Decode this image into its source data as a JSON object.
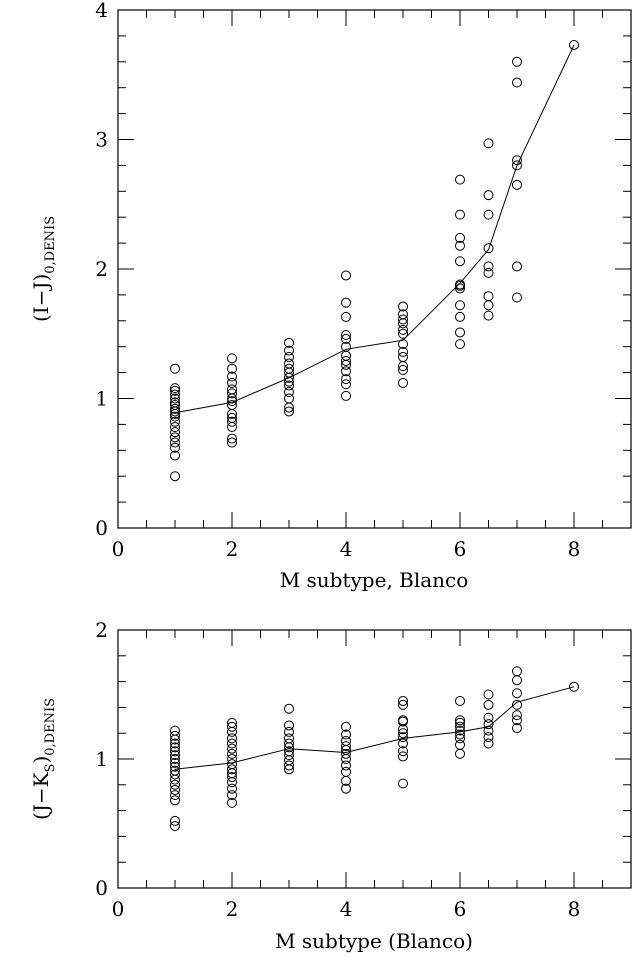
{
  "chart_data": [
    {
      "type": "scatter",
      "ylabel": "(I−J)",
      "ylabel_sub": "0,DENIS",
      "xlabel": "M subtype, Blanco",
      "xlim": [
        0,
        9
      ],
      "ylim": [
        0,
        4
      ],
      "x_ticks": [
        "0",
        "2",
        "4",
        "6",
        "8"
      ],
      "y_ticks": [
        "0",
        "1",
        "2",
        "3",
        "4"
      ],
      "grid": false,
      "points": [
        {
          "x": 1,
          "y": 0.4
        },
        {
          "x": 1,
          "y": 0.56
        },
        {
          "x": 1,
          "y": 0.62
        },
        {
          "x": 1,
          "y": 0.66
        },
        {
          "x": 1,
          "y": 0.7
        },
        {
          "x": 1,
          "y": 0.74
        },
        {
          "x": 1,
          "y": 0.78
        },
        {
          "x": 1,
          "y": 0.82
        },
        {
          "x": 1,
          "y": 0.86
        },
        {
          "x": 1,
          "y": 0.88
        },
        {
          "x": 1,
          "y": 0.9
        },
        {
          "x": 1,
          "y": 0.92
        },
        {
          "x": 1,
          "y": 0.95
        },
        {
          "x": 1,
          "y": 0.97
        },
        {
          "x": 1,
          "y": 1.0
        },
        {
          "x": 1,
          "y": 1.03
        },
        {
          "x": 1,
          "y": 1.06
        },
        {
          "x": 1,
          "y": 1.08
        },
        {
          "x": 1,
          "y": 1.23
        },
        {
          "x": 2,
          "y": 0.66
        },
        {
          "x": 2,
          "y": 0.69
        },
        {
          "x": 2,
          "y": 0.78
        },
        {
          "x": 2,
          "y": 0.82
        },
        {
          "x": 2,
          "y": 0.85
        },
        {
          "x": 2,
          "y": 0.88
        },
        {
          "x": 2,
          "y": 0.95
        },
        {
          "x": 2,
          "y": 0.98
        },
        {
          "x": 2,
          "y": 1.0
        },
        {
          "x": 2,
          "y": 1.04
        },
        {
          "x": 2,
          "y": 1.07
        },
        {
          "x": 2,
          "y": 1.12
        },
        {
          "x": 2,
          "y": 1.17
        },
        {
          "x": 2,
          "y": 1.23
        },
        {
          "x": 2,
          "y": 1.31
        },
        {
          "x": 3,
          "y": 0.9
        },
        {
          "x": 3,
          "y": 0.93
        },
        {
          "x": 3,
          "y": 1.0
        },
        {
          "x": 3,
          "y": 1.05
        },
        {
          "x": 3,
          "y": 1.1
        },
        {
          "x": 3,
          "y": 1.13
        },
        {
          "x": 3,
          "y": 1.16
        },
        {
          "x": 3,
          "y": 1.2
        },
        {
          "x": 3,
          "y": 1.23
        },
        {
          "x": 3,
          "y": 1.27
        },
        {
          "x": 3,
          "y": 1.32
        },
        {
          "x": 3,
          "y": 1.37
        },
        {
          "x": 3,
          "y": 1.43
        },
        {
          "x": 4,
          "y": 1.02
        },
        {
          "x": 4,
          "y": 1.11
        },
        {
          "x": 4,
          "y": 1.15
        },
        {
          "x": 4,
          "y": 1.21
        },
        {
          "x": 4,
          "y": 1.26
        },
        {
          "x": 4,
          "y": 1.29
        },
        {
          "x": 4,
          "y": 1.33
        },
        {
          "x": 4,
          "y": 1.4
        },
        {
          "x": 4,
          "y": 1.46
        },
        {
          "x": 4,
          "y": 1.49
        },
        {
          "x": 4,
          "y": 1.63
        },
        {
          "x": 4,
          "y": 1.74
        },
        {
          "x": 4,
          "y": 1.95
        },
        {
          "x": 5,
          "y": 1.12
        },
        {
          "x": 5,
          "y": 1.22
        },
        {
          "x": 5,
          "y": 1.25
        },
        {
          "x": 5,
          "y": 1.32
        },
        {
          "x": 5,
          "y": 1.36
        },
        {
          "x": 5,
          "y": 1.42
        },
        {
          "x": 5,
          "y": 1.5
        },
        {
          "x": 5,
          "y": 1.53
        },
        {
          "x": 5,
          "y": 1.58
        },
        {
          "x": 5,
          "y": 1.61
        },
        {
          "x": 5,
          "y": 1.65
        },
        {
          "x": 5,
          "y": 1.71
        },
        {
          "x": 6,
          "y": 1.42
        },
        {
          "x": 6,
          "y": 1.51
        },
        {
          "x": 6,
          "y": 1.63
        },
        {
          "x": 6,
          "y": 1.72
        },
        {
          "x": 6,
          "y": 1.85
        },
        {
          "x": 6,
          "y": 1.87
        },
        {
          "x": 6,
          "y": 1.88
        },
        {
          "x": 6,
          "y": 2.06
        },
        {
          "x": 6,
          "y": 2.18
        },
        {
          "x": 6,
          "y": 2.24
        },
        {
          "x": 6,
          "y": 2.42
        },
        {
          "x": 6,
          "y": 2.69
        },
        {
          "x": 6.5,
          "y": 1.64
        },
        {
          "x": 6.5,
          "y": 1.72
        },
        {
          "x": 6.5,
          "y": 1.79
        },
        {
          "x": 6.5,
          "y": 1.97
        },
        {
          "x": 6.5,
          "y": 2.02
        },
        {
          "x": 6.5,
          "y": 2.16
        },
        {
          "x": 6.5,
          "y": 2.42
        },
        {
          "x": 6.5,
          "y": 2.57
        },
        {
          "x": 6.5,
          "y": 2.97
        },
        {
          "x": 7,
          "y": 1.78
        },
        {
          "x": 7,
          "y": 2.02
        },
        {
          "x": 7,
          "y": 2.65
        },
        {
          "x": 7,
          "y": 2.8
        },
        {
          "x": 7,
          "y": 2.84
        },
        {
          "x": 7,
          "y": 3.44
        },
        {
          "x": 7,
          "y": 3.6
        },
        {
          "x": 8,
          "y": 3.73
        }
      ],
      "mean_line": [
        {
          "x": 1,
          "y": 0.89
        },
        {
          "x": 2,
          "y": 0.97
        },
        {
          "x": 3,
          "y": 1.16
        },
        {
          "x": 4,
          "y": 1.38
        },
        {
          "x": 5,
          "y": 1.45
        },
        {
          "x": 6,
          "y": 1.89
        },
        {
          "x": 6.5,
          "y": 2.15
        },
        {
          "x": 7,
          "y": 2.8
        },
        {
          "x": 8,
          "y": 3.73
        }
      ]
    },
    {
      "type": "scatter",
      "ylabel": "(J−K",
      "ylabel_sub1": "S",
      "ylabel_mid": ")",
      "ylabel_sub": "0,DENIS",
      "xlabel": "M subtype (Blanco)",
      "xlim": [
        0,
        9
      ],
      "ylim": [
        0,
        2
      ],
      "x_ticks": [
        "0",
        "2",
        "4",
        "6",
        "8"
      ],
      "y_ticks": [
        "0",
        "1",
        "2"
      ],
      "grid": false,
      "points": [
        {
          "x": 1,
          "y": 0.48
        },
        {
          "x": 1,
          "y": 0.52
        },
        {
          "x": 1,
          "y": 0.68
        },
        {
          "x": 1,
          "y": 0.72
        },
        {
          "x": 1,
          "y": 0.76
        },
        {
          "x": 1,
          "y": 0.8
        },
        {
          "x": 1,
          "y": 0.84
        },
        {
          "x": 1,
          "y": 0.88
        },
        {
          "x": 1,
          "y": 0.91
        },
        {
          "x": 1,
          "y": 0.94
        },
        {
          "x": 1,
          "y": 0.97
        },
        {
          "x": 1,
          "y": 1.0
        },
        {
          "x": 1,
          "y": 1.03
        },
        {
          "x": 1,
          "y": 1.06
        },
        {
          "x": 1,
          "y": 1.09
        },
        {
          "x": 1,
          "y": 1.12
        },
        {
          "x": 1,
          "y": 1.15
        },
        {
          "x": 1,
          "y": 1.18
        },
        {
          "x": 1,
          "y": 1.22
        },
        {
          "x": 2,
          "y": 0.66
        },
        {
          "x": 2,
          "y": 0.72
        },
        {
          "x": 2,
          "y": 0.77
        },
        {
          "x": 2,
          "y": 0.82
        },
        {
          "x": 2,
          "y": 0.86
        },
        {
          "x": 2,
          "y": 0.89
        },
        {
          "x": 2,
          "y": 0.92
        },
        {
          "x": 2,
          "y": 0.96
        },
        {
          "x": 2,
          "y": 1.0
        },
        {
          "x": 2,
          "y": 1.04
        },
        {
          "x": 2,
          "y": 1.08
        },
        {
          "x": 2,
          "y": 1.12
        },
        {
          "x": 2,
          "y": 1.16
        },
        {
          "x": 2,
          "y": 1.21
        },
        {
          "x": 2,
          "y": 1.25
        },
        {
          "x": 2,
          "y": 1.28
        },
        {
          "x": 3,
          "y": 0.92
        },
        {
          "x": 3,
          "y": 0.95
        },
        {
          "x": 3,
          "y": 0.99
        },
        {
          "x": 3,
          "y": 1.03
        },
        {
          "x": 3,
          "y": 1.06
        },
        {
          "x": 3,
          "y": 1.09
        },
        {
          "x": 3,
          "y": 1.12
        },
        {
          "x": 3,
          "y": 1.16
        },
        {
          "x": 3,
          "y": 1.21
        },
        {
          "x": 3,
          "y": 1.26
        },
        {
          "x": 3,
          "y": 1.39
        },
        {
          "x": 4,
          "y": 0.77
        },
        {
          "x": 4,
          "y": 0.83
        },
        {
          "x": 4,
          "y": 0.9
        },
        {
          "x": 4,
          "y": 0.95
        },
        {
          "x": 4,
          "y": 1.0
        },
        {
          "x": 4,
          "y": 1.04
        },
        {
          "x": 4,
          "y": 1.07
        },
        {
          "x": 4,
          "y": 1.1
        },
        {
          "x": 4,
          "y": 1.14
        },
        {
          "x": 4,
          "y": 1.19
        },
        {
          "x": 4,
          "y": 1.25
        },
        {
          "x": 5,
          "y": 0.81
        },
        {
          "x": 5,
          "y": 1.02
        },
        {
          "x": 5,
          "y": 1.06
        },
        {
          "x": 5,
          "y": 1.12
        },
        {
          "x": 5,
          "y": 1.17
        },
        {
          "x": 5,
          "y": 1.2
        },
        {
          "x": 5,
          "y": 1.23
        },
        {
          "x": 5,
          "y": 1.29
        },
        {
          "x": 5,
          "y": 1.3
        },
        {
          "x": 5,
          "y": 1.42
        },
        {
          "x": 5,
          "y": 1.45
        },
        {
          "x": 6,
          "y": 1.04
        },
        {
          "x": 6,
          "y": 1.11
        },
        {
          "x": 6,
          "y": 1.16
        },
        {
          "x": 6,
          "y": 1.19
        },
        {
          "x": 6,
          "y": 1.22
        },
        {
          "x": 6,
          "y": 1.25
        },
        {
          "x": 6,
          "y": 1.28
        },
        {
          "x": 6,
          "y": 1.3
        },
        {
          "x": 6,
          "y": 1.45
        },
        {
          "x": 6.5,
          "y": 1.12
        },
        {
          "x": 6.5,
          "y": 1.17
        },
        {
          "x": 6.5,
          "y": 1.22
        },
        {
          "x": 6.5,
          "y": 1.27
        },
        {
          "x": 6.5,
          "y": 1.32
        },
        {
          "x": 6.5,
          "y": 1.42
        },
        {
          "x": 6.5,
          "y": 1.5
        },
        {
          "x": 7,
          "y": 1.24
        },
        {
          "x": 7,
          "y": 1.3
        },
        {
          "x": 7,
          "y": 1.34
        },
        {
          "x": 7,
          "y": 1.42
        },
        {
          "x": 7,
          "y": 1.51
        },
        {
          "x": 7,
          "y": 1.61
        },
        {
          "x": 7,
          "y": 1.68
        },
        {
          "x": 8,
          "y": 1.56
        }
      ],
      "mean_line": [
        {
          "x": 1,
          "y": 0.92
        },
        {
          "x": 2,
          "y": 0.97
        },
        {
          "x": 3,
          "y": 1.08
        },
        {
          "x": 4,
          "y": 1.05
        },
        {
          "x": 5,
          "y": 1.16
        },
        {
          "x": 6,
          "y": 1.21
        },
        {
          "x": 6.5,
          "y": 1.25
        },
        {
          "x": 7,
          "y": 1.44
        },
        {
          "x": 8,
          "y": 1.56
        }
      ]
    }
  ]
}
